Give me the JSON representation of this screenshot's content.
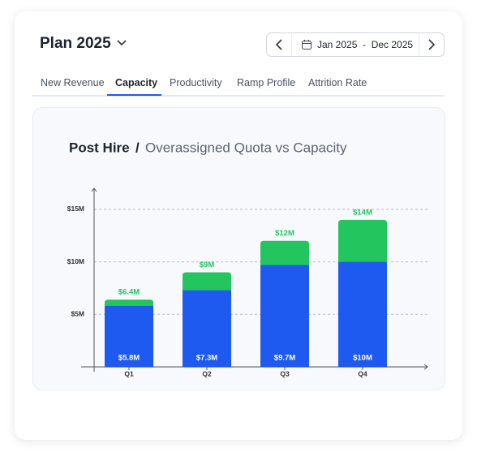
{
  "header": {
    "title": "Plan 2025",
    "date_range": "Jan 2025  -  Dec 2025"
  },
  "tabs": [
    "New Revenue",
    "Capacity",
    "Productivity",
    "Ramp Profile",
    "Attrition Rate"
  ],
  "active_tab": 1,
  "chart_data": {
    "type": "bar",
    "stacked": true,
    "title": "Post Hire",
    "title_separator": "/",
    "subtitle": "Overassigned Quota vs Capacity",
    "categories": [
      "Q1",
      "Q2",
      "Q3",
      "Q4"
    ],
    "series": [
      {
        "color": "#1f5af0",
        "values": [
          5.8,
          7.3,
          9.7,
          10
        ],
        "value_labels": [
          "$5.8M",
          "$7.3M",
          "$9.7M",
          "$10M"
        ]
      }
    ],
    "totals": {
      "color": "#22c55e",
      "values": [
        6.4,
        9,
        12,
        14
      ],
      "value_labels": [
        "$6.4M",
        "$9M",
        "$12M",
        "$14M"
      ]
    },
    "ylim": [
      0,
      17
    ],
    "yticks": [
      {
        "value": 5,
        "label": "$5M"
      },
      {
        "value": 10,
        "label": "$10M"
      },
      {
        "value": 15,
        "label": "$15M"
      }
    ],
    "grid": true
  }
}
